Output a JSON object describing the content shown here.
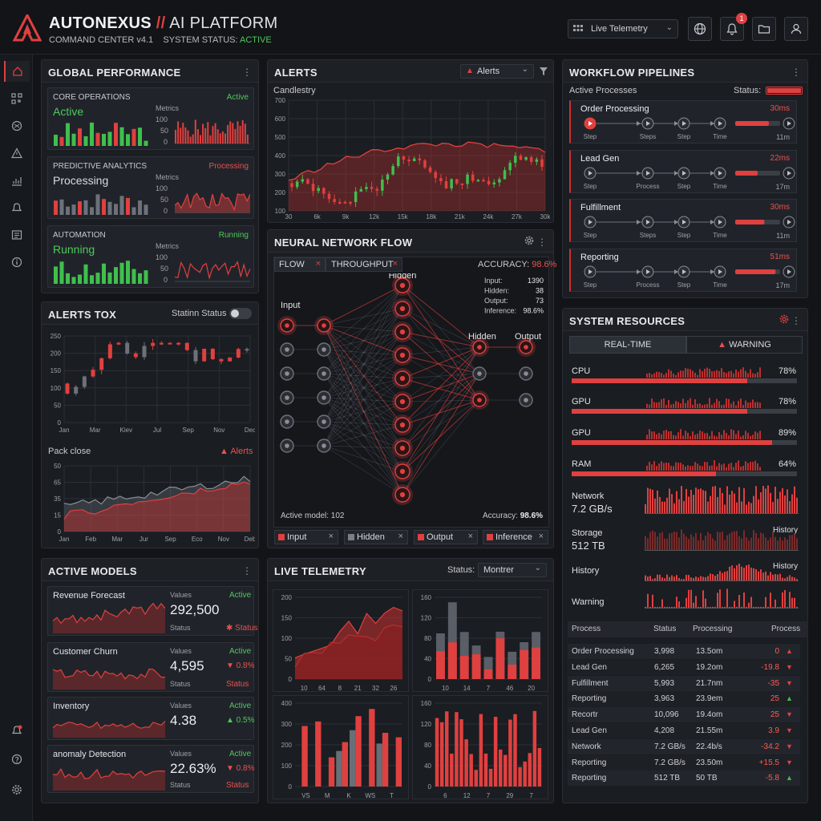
{
  "brand": {
    "name": "AUTONEXUS",
    "sep": "//",
    "platform": "AI PLATFORM",
    "version": "COMMAND CENTER v4.1",
    "status_label": "SYSTEM STATUS:",
    "status_value": "ACTIVE"
  },
  "topbar": {
    "view_select": "Live Telemetry",
    "notif_count": "1"
  },
  "global_perf": {
    "title": "GLOBAL PERFORMANCE",
    "cards": [
      {
        "title": "CORE OPERATIONS",
        "state": "Active",
        "status": "Active",
        "metrics": "Metrics",
        "ticks": [
          "100",
          "50",
          "0"
        ]
      },
      {
        "title": "PREDICTIVE ANALYTICS",
        "state": "Processing",
        "status": "Processing",
        "metrics": "Metrics",
        "ticks": [
          "100",
          "50",
          "0"
        ]
      },
      {
        "title": "AUTOMATION",
        "state": "Running",
        "status": "Running",
        "metrics": "Metrics",
        "ticks": [
          "100",
          "50",
          "0"
        ]
      }
    ]
  },
  "alerts_tox": {
    "title": "ALERTS TOX",
    "toggle_label": "Statinn Status",
    "yticks": [
      "250",
      "200",
      "150",
      "100",
      "50",
      "0"
    ],
    "xticks": [
      "Jan",
      "Mar",
      "Kiev",
      "Jul",
      "Sep",
      "Nov",
      "Dec"
    ],
    "sub_title": "Pack close",
    "sub_alert": "Alerts",
    "sub_yticks": [
      "50",
      "65",
      "35",
      "15",
      "0"
    ],
    "sub_xticks": [
      "Jan",
      "Feb",
      "Mar",
      "Jur",
      "Sep",
      "Eco",
      "Nov",
      "Deb"
    ]
  },
  "alerts": {
    "title": "ALERTS",
    "filter": "Alerts",
    "chart_label": "Candlestry",
    "yticks": [
      "700",
      "600",
      "500",
      "400",
      "300",
      "200",
      "100"
    ],
    "xticks": [
      "30",
      "6k",
      "9k",
      "12k",
      "15k",
      "18k",
      "21k",
      "24k",
      "27k",
      "30k"
    ]
  },
  "neural": {
    "title": "NEURAL NETWORK FLOW",
    "tab1": "FLOW",
    "tab2": "THROUGHPUT",
    "accuracy_label": "ACCURACY:",
    "accuracy_value": "98.6%",
    "layers": {
      "input": "Input",
      "hidden1": "Hidden",
      "hidden2": "Hidden",
      "output": "Output"
    },
    "stats": {
      "input_l": "Input:",
      "input_v": "1390",
      "hidden_l": "Hidden:",
      "hidden_v": "38",
      "output_l": "Output:",
      "output_v": "73",
      "inference_l": "Inference:",
      "inference_v": "98.6%"
    },
    "active_model": "Active model: 102",
    "bottom_acc_l": "Accuracy:",
    "bottom_acc_v": "98.6%",
    "chips": [
      "Input",
      "Hidden",
      "Output",
      "Inference"
    ]
  },
  "workflow": {
    "title": "WORKFLOW PIPELINES",
    "active": "Active Processes",
    "status": "Status:",
    "rows": [
      {
        "name": "Order Processing",
        "ms": "30ms",
        "steps": [
          "Step",
          "Steps",
          "Step",
          "Time"
        ],
        "time": "11m"
      },
      {
        "name": "Lead Gen",
        "ms": "22ms",
        "steps": [
          "Step",
          "Process",
          "Step",
          "Time"
        ],
        "time": "17m"
      },
      {
        "name": "Fulfillment",
        "ms": "30ms",
        "steps": [
          "Step",
          "Steps",
          "Step",
          "Time"
        ],
        "time": "11m"
      },
      {
        "name": "Reporting",
        "ms": "51ms",
        "steps": [
          "Step",
          "Process",
          "Step",
          "Time"
        ],
        "time": "17m"
      }
    ]
  },
  "resources": {
    "title": "SYSTEM RESOURCES",
    "tab_rt": "REAL-TIME",
    "tab_warn": "WARNING",
    "bars": [
      {
        "name": "CPU",
        "value": "78%",
        "level": 78
      },
      {
        "name": "GPU",
        "value": "78%",
        "level": 78
      },
      {
        "name": "GPU",
        "value": "89%",
        "level": 89
      },
      {
        "name": "RAM",
        "value": "64%",
        "level": 64
      }
    ],
    "network_l": "Network",
    "network_v": "7.2 GB/s",
    "storage_l": "Storage",
    "storage_v": "512 TB",
    "storage_tag": "History",
    "history_l": "History",
    "history_tag": "History",
    "warning_l": "Warning",
    "table": {
      "headers": [
        "Process",
        "Status",
        "Processing",
        "Process"
      ],
      "rows": [
        [
          "Order Processing",
          "3,998",
          "13.5om",
          "0",
          "up"
        ],
        [
          "Lead Gen",
          "6,265",
          "19.2om",
          "-19.8",
          "down"
        ],
        [
          "Fulfillment",
          "5,993",
          "21.7nm",
          "-35",
          "down"
        ],
        [
          "Reporting",
          "3,963",
          "23.9em",
          "25",
          "up"
        ],
        [
          "Recortr",
          "10,096",
          "19.4om",
          "25",
          "down"
        ],
        [
          "Lead Gen",
          "4,208",
          "21.55m",
          "3.9",
          "down"
        ],
        [
          "Network",
          "7.2 GB/s",
          "22.4b/s",
          "-34.2",
          "down"
        ],
        [
          "Reporting",
          "7.2 GB/s",
          "23.50m",
          "+15.5",
          "down"
        ],
        [
          "Reporting",
          "512 TB",
          "50 TB",
          "-5.8",
          "up"
        ]
      ]
    }
  },
  "models": {
    "title": "ACTIVE MODELS",
    "items": [
      {
        "name": "Revenue Forecast",
        "values": "Values",
        "status_top": "Active",
        "value": "292,500",
        "status_l": "Status",
        "status_v": "Status",
        "delta": ""
      },
      {
        "name": "Customer Churn",
        "values": "Values",
        "status_top": "Active",
        "value": "4,595",
        "status_l": "Status",
        "status_v": "Status",
        "delta": "0.8%"
      },
      {
        "name": "Inventory",
        "values": "Values",
        "status_top": "Active",
        "value": "4.38",
        "status_l": "",
        "status_v": "",
        "delta": "0.5%"
      },
      {
        "name": "anomaly Detection",
        "values": "Values",
        "status_top": "Active",
        "value": "22.63%",
        "status_l": "Status",
        "status_v": "Status",
        "delta": "0.8%"
      }
    ]
  },
  "telemetry": {
    "title": "LIVE TELEMETRY",
    "status_l": "Status:",
    "status_v": "Montrer",
    "c1": {
      "yticks": [
        "200",
        "150",
        "100",
        "50",
        "0"
      ],
      "xticks": [
        "10",
        "64",
        "8",
        "21",
        "32",
        "26"
      ]
    },
    "c2": {
      "yticks": [
        "160",
        "120",
        "80",
        "40",
        "0"
      ],
      "xticks": [
        "10",
        "14",
        "7",
        "46",
        "20"
      ]
    },
    "c3": {
      "yticks": [
        "400",
        "300",
        "200",
        "100",
        "0"
      ],
      "xticks": [
        "VS",
        "M",
        "K",
        "WS",
        "T"
      ]
    },
    "c4": {
      "yticks": [
        "160",
        "120",
        "80",
        "40",
        "0"
      ],
      "xticks": [
        "6",
        "12",
        "7",
        "29",
        "7"
      ]
    }
  },
  "chart_data": [
    {
      "type": "bar",
      "title": "CORE OPERATIONS",
      "ylim": [
        0,
        100
      ],
      "values": [
        15,
        20,
        25,
        18,
        40,
        45,
        30,
        22,
        50,
        60,
        38,
        28,
        32
      ]
    },
    {
      "type": "candlestick",
      "title": "ALERTS TOX",
      "ylim": [
        0,
        250
      ],
      "categories": [
        "Jan",
        "Mar",
        "Kiev",
        "Jul",
        "Sep",
        "Nov",
        "Dec"
      ]
    },
    {
      "type": "area",
      "title": "Pack close",
      "ylim": [
        0,
        50
      ]
    },
    {
      "type": "candlestick",
      "title": "ALERTS",
      "ylim": [
        100,
        700
      ]
    },
    {
      "type": "bar",
      "title": "LIVE TELEMETRY",
      "ylim": [
        0,
        160
      ]
    }
  ]
}
